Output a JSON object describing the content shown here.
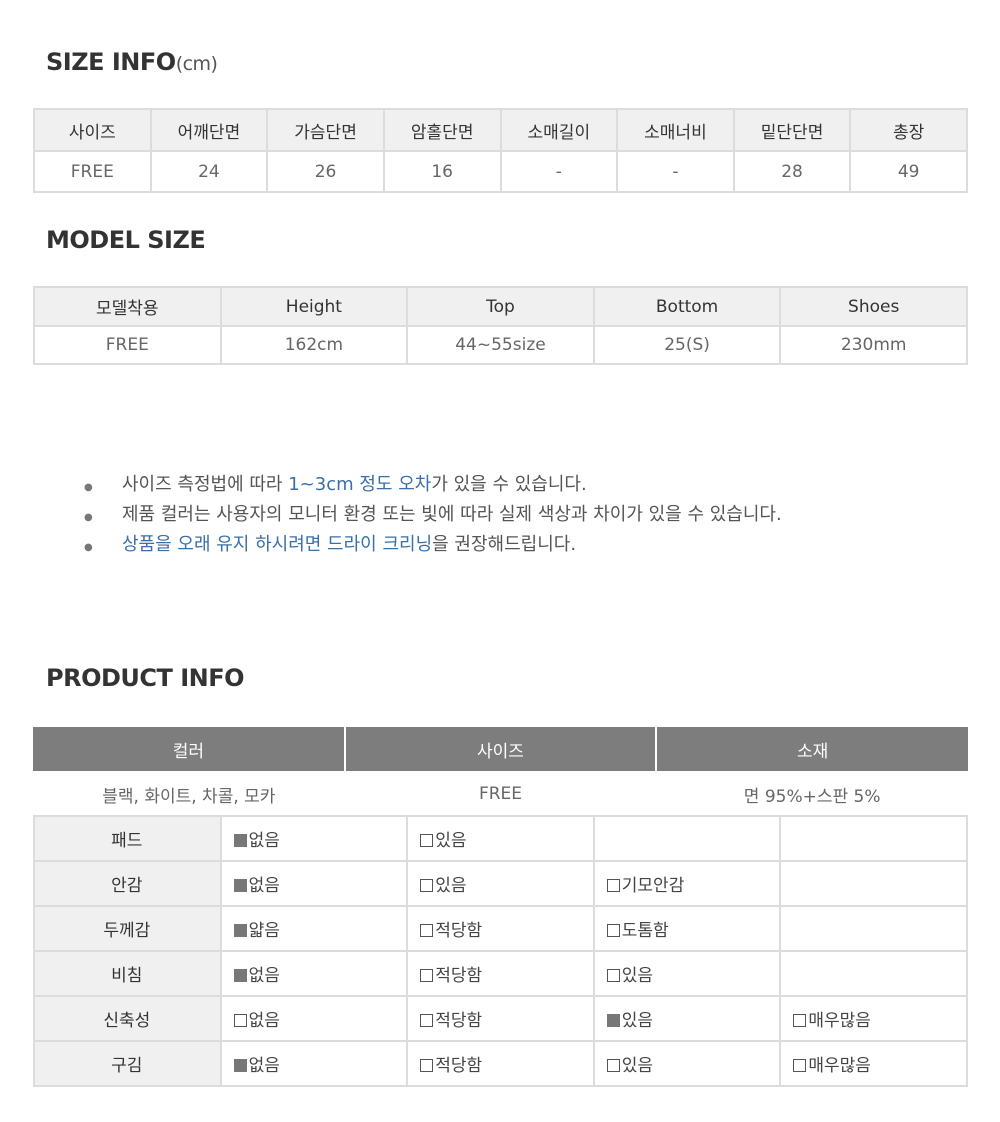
{
  "size_info": {
    "title": "SIZE INFO",
    "unit": "(cm)",
    "headers": [
      "사이즈",
      "어깨단면",
      "가슴단면",
      "암홀단면",
      "소매길이",
      "소매너비",
      "밑단단면",
      "총장"
    ],
    "values": [
      "FREE",
      "24",
      "26",
      "16",
      "-",
      "-",
      "28",
      "49"
    ]
  },
  "model_size": {
    "title": "MODEL SIZE",
    "headers": [
      "모델착용",
      "Height",
      "Top",
      "Bottom",
      "Shoes"
    ],
    "values": [
      "FREE",
      "162cm",
      "44~55size",
      "25(S)",
      "230mm"
    ]
  },
  "notes": [
    {
      "pre": "사이즈 측정법에 따라 ",
      "hl": "1~3cm 정도 오차",
      "post": "가 있을 수 있습니다."
    },
    {
      "pre": "제품 컬러는 사용자의 모니터 환경 또는 빛에 따라 실제 색상과 차이가 있을 수 있습니다.",
      "hl": "",
      "post": ""
    },
    {
      "pre": "",
      "hl": "상품을 오래 유지 하시려면 드라이 크리닝",
      "post": "을 권장해드립니다."
    }
  ],
  "accent_color": "#3a6fa8",
  "product_info": {
    "title": "PRODUCT INFO",
    "headers": [
      "컬러",
      "사이즈",
      "소재"
    ],
    "values": [
      "블랙, 화이트, 차콜, 모카",
      "FREE",
      "면 95%+스판 5%"
    ],
    "rows": [
      {
        "label": "패드",
        "options": [
          {
            "text": "없음",
            "checked": true
          },
          {
            "text": "있음",
            "checked": false
          }
        ]
      },
      {
        "label": "안감",
        "options": [
          {
            "text": "없음",
            "checked": true
          },
          {
            "text": "있음",
            "checked": false
          },
          {
            "text": "기모안감",
            "checked": false
          }
        ]
      },
      {
        "label": "두께감",
        "options": [
          {
            "text": "얇음",
            "checked": true
          },
          {
            "text": "적당함",
            "checked": false
          },
          {
            "text": "도톰함",
            "checked": false
          }
        ]
      },
      {
        "label": "비침",
        "options": [
          {
            "text": "없음",
            "checked": true
          },
          {
            "text": "적당함",
            "checked": false
          },
          {
            "text": "있음",
            "checked": false
          }
        ]
      },
      {
        "label": "신축성",
        "options": [
          {
            "text": "없음",
            "checked": false
          },
          {
            "text": "적당함",
            "checked": false
          },
          {
            "text": "있음",
            "checked": true
          },
          {
            "text": "매우많음",
            "checked": false
          }
        ]
      },
      {
        "label": "구김",
        "options": [
          {
            "text": "없음",
            "checked": true
          },
          {
            "text": "적당함",
            "checked": false
          },
          {
            "text": "있음",
            "checked": false
          },
          {
            "text": "매우많음",
            "checked": false
          }
        ]
      }
    ]
  }
}
